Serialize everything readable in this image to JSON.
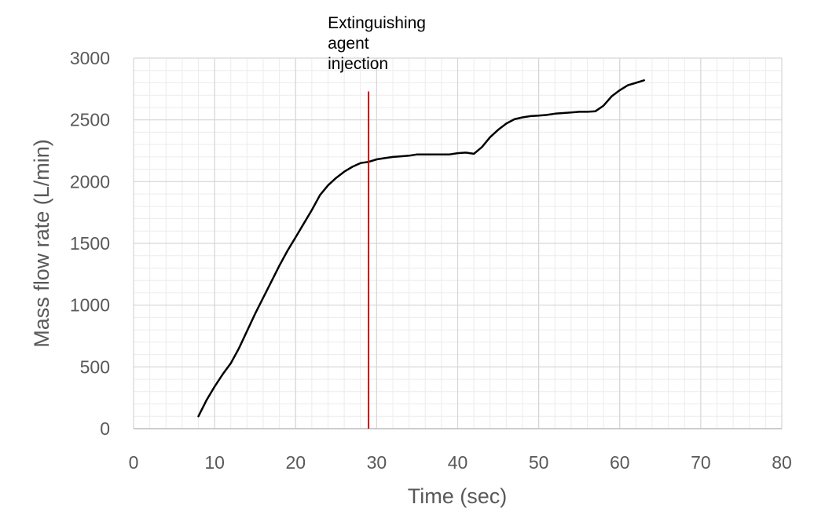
{
  "chart_data": {
    "type": "line",
    "title": "",
    "xlabel": "Time (sec)",
    "ylabel": "Mass flow rate (L/min)",
    "xlim": [
      0,
      80
    ],
    "ylim": [
      0,
      3000
    ],
    "xticks": [
      0,
      10,
      20,
      30,
      40,
      50,
      60,
      70,
      80
    ],
    "yticks": [
      0,
      500,
      1000,
      1500,
      2000,
      2500,
      3000
    ],
    "xtick_labels": [
      "0",
      "10",
      "20",
      "30",
      "40",
      "50",
      "60",
      "70",
      "80"
    ],
    "ytick_labels": [
      "0",
      "500",
      "1000",
      "1500",
      "2000",
      "2500",
      "3000"
    ],
    "grid": {
      "major": true,
      "minor": true
    },
    "legend": "none",
    "series": [
      {
        "color": "#000000",
        "x": [
          8,
          9,
          10,
          11,
          12,
          13,
          14,
          15,
          16,
          17,
          18,
          19,
          20,
          21,
          22,
          23,
          24,
          25,
          26,
          27,
          28,
          29,
          30,
          31,
          32,
          33,
          34,
          35,
          36,
          37,
          38,
          39,
          40,
          41,
          42,
          43,
          44,
          45,
          46,
          47,
          48,
          49,
          50,
          51,
          52,
          53,
          54,
          55,
          56,
          57,
          58,
          59,
          60,
          61,
          62,
          63
        ],
        "y": [
          100,
          230,
          340,
          440,
          530,
          650,
          790,
          930,
          1060,
          1190,
          1320,
          1440,
          1550,
          1660,
          1770,
          1890,
          1970,
          2030,
          2080,
          2120,
          2150,
          2160,
          2180,
          2190,
          2200,
          2205,
          2210,
          2220,
          2220,
          2220,
          2220,
          2220,
          2230,
          2235,
          2225,
          2280,
          2360,
          2420,
          2470,
          2505,
          2520,
          2530,
          2535,
          2540,
          2550,
          2555,
          2560,
          2565,
          2565,
          2570,
          2615,
          2690,
          2740,
          2780,
          2800,
          2820
        ]
      }
    ],
    "annotations": [
      {
        "text_lines": [
          "Extinguishing",
          "agent",
          "injection"
        ],
        "x": 29,
        "y_range": [
          0,
          2730
        ],
        "color": "#cc0000"
      }
    ]
  }
}
